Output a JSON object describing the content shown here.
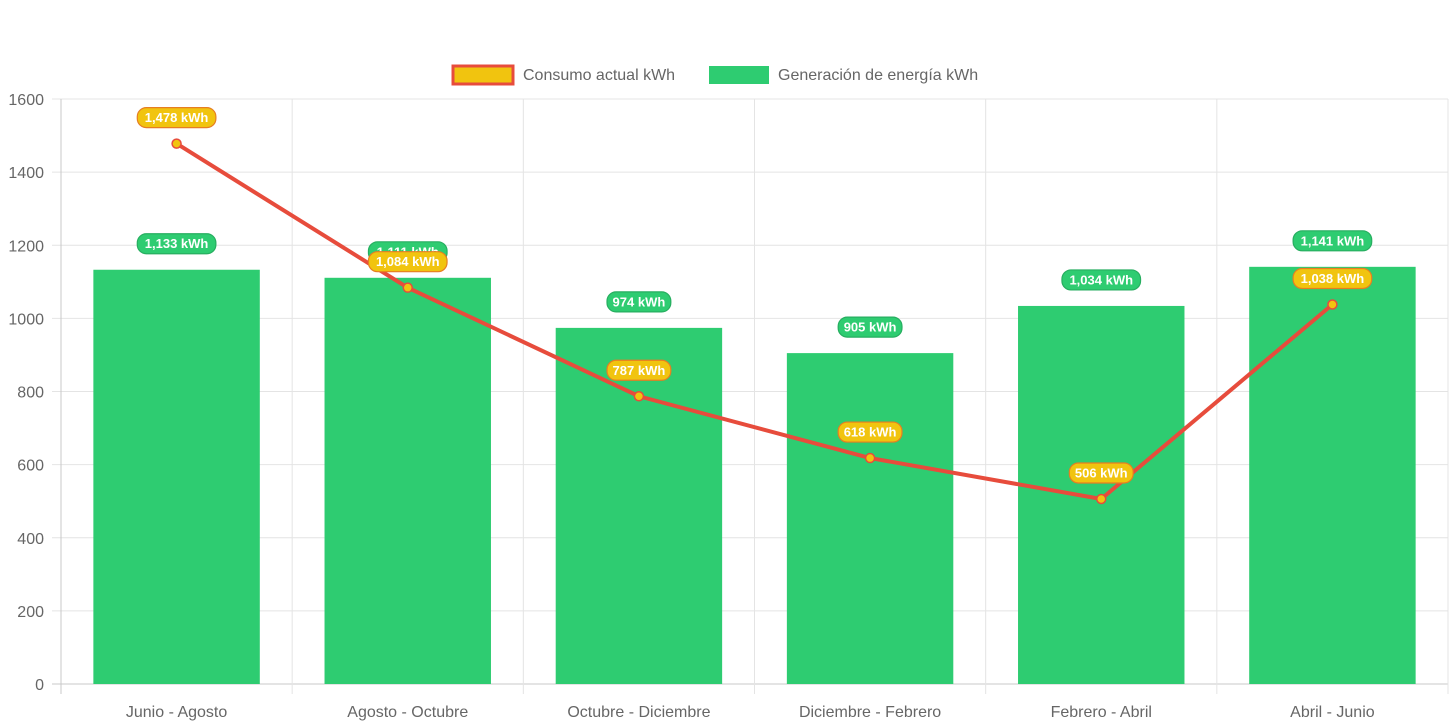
{
  "chart_data": {
    "type": "bar",
    "categories": [
      "Junio - Agosto",
      "Agosto - Octubre",
      "Octubre - Diciembre",
      "Diciembre - Febrero",
      "Febrero - Abril",
      "Abril - Junio"
    ],
    "series": [
      {
        "name": "Consumo actual kWh",
        "type": "line",
        "values": [
          1478,
          1084,
          787,
          618,
          506,
          1038
        ],
        "labels": [
          "1,478 kWh",
          "1,084 kWh",
          "787 kWh",
          "618 kWh",
          "506 kWh",
          "1,038 kWh"
        ],
        "color": "#e74c3c",
        "fill": "#f1c40f"
      },
      {
        "name": "Generación de energía kWh",
        "type": "bar",
        "values": [
          1133,
          1111,
          974,
          905,
          1034,
          1141
        ],
        "labels": [
          "1,133 kWh",
          "1,111 kWh",
          "974 kWh",
          "905 kWh",
          "1,034 kWh",
          "1,141 kWh"
        ],
        "color": "#2ecc71"
      }
    ],
    "yticks": [
      "0",
      "200",
      "400",
      "600",
      "800",
      "1000",
      "1200",
      "1400",
      "1600"
    ],
    "ylim": [
      0,
      1600
    ],
    "grid": true,
    "legend": "top-center"
  }
}
